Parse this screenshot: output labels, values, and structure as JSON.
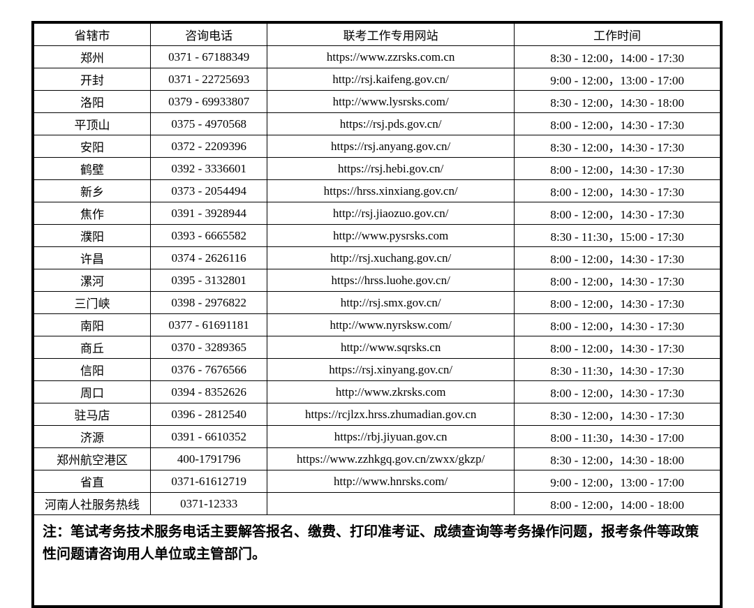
{
  "table": {
    "columns": [
      "省辖市",
      "咨询电话",
      "联考工作专用网站",
      "工作时间"
    ],
    "rows": [
      [
        "郑州",
        "0371 - 67188349",
        "https://www.zzrsks.com.cn",
        "8:30 - 12:00，14:00 - 17:30"
      ],
      [
        "开封",
        "0371 - 22725693",
        "http://rsj.kaifeng.gov.cn/",
        "9:00 - 12:00，13:00 - 17:00"
      ],
      [
        "洛阳",
        "0379 - 69933807",
        "http://www.lysrsks.com/",
        "8:30 - 12:00，14:30 - 18:00"
      ],
      [
        "平顶山",
        "0375 - 4970568",
        "https://rsj.pds.gov.cn/",
        "8:00 - 12:00，14:30 - 17:30"
      ],
      [
        "安阳",
        "0372 - 2209396",
        "https://rsj.anyang.gov.cn/",
        "8:30 - 12:00，14:30 - 17:30"
      ],
      [
        "鹤壁",
        "0392 - 3336601",
        "https://rsj.hebi.gov.cn/",
        "8:00 - 12:00，14:30 - 17:30"
      ],
      [
        "新乡",
        "0373 - 2054494",
        "https://hrss.xinxiang.gov.cn/",
        "8:00 - 12:00，14:30 - 17:30"
      ],
      [
        "焦作",
        "0391 - 3928944",
        "http://rsj.jiaozuo.gov.cn/",
        "8:00 - 12:00，14:30 - 17:30"
      ],
      [
        "濮阳",
        "0393 - 6665582",
        "http://www.pysrsks.com",
        "8:30 - 11:30，15:00 - 17:30"
      ],
      [
        "许昌",
        "0374 - 2626116",
        "http://rsj.xuchang.gov.cn/",
        "8:00 - 12:00，14:30 - 17:30"
      ],
      [
        "漯河",
        "0395 - 3132801",
        "https://hrss.luohe.gov.cn/",
        "8:00 - 12:00，14:30 - 17:30"
      ],
      [
        "三门峡",
        "0398 - 2976822",
        "http://rsj.smx.gov.cn/",
        "8:00 - 12:00，14:30 - 17:30"
      ],
      [
        "南阳",
        "0377 - 61691181",
        "http://www.nyrsksw.com/",
        "8:00 - 12:00，14:30 - 17:30"
      ],
      [
        "商丘",
        "0370 - 3289365",
        "http://www.sqrsks.cn",
        "8:00 - 12:00，14:30 - 17:30"
      ],
      [
        "信阳",
        "0376 - 7676566",
        "https://rsj.xinyang.gov.cn/",
        "8:30 - 11:30，14:30 - 17:30"
      ],
      [
        "周口",
        "0394 - 8352626",
        "http://www.zkrsks.com",
        "8:00 - 12:00，14:30 - 17:30"
      ],
      [
        "驻马店",
        "0396 - 2812540",
        "https://rcjlzx.hrss.zhumadian.gov.cn",
        "8:30 - 12:00，14:30 - 17:30"
      ],
      [
        "济源",
        "0391 - 6610352",
        "https://rbj.jiyuan.gov.cn",
        "8:00 - 11:30，14:30 - 17:00"
      ],
      [
        "郑州航空港区",
        "400-1791796",
        "https://www.zzhkgq.gov.cn/zwxx/gkzp/",
        "8:30 - 12:00，14:30 - 18:00"
      ],
      [
        "省直",
        "0371-61612719",
        "http://www.hnrsks.com/",
        "9:00 - 12:00，13:00 - 17:00"
      ],
      [
        "河南人社服务热线",
        "0371-12333",
        "",
        "8:00 - 12:00，14:00 - 18:00"
      ]
    ],
    "note": "注：笔试考务技术服务电话主要解答报名、缴费、打印准考证、成绩查询等考务操作问题，报考条件等政策性问题请咨询用人单位或主管部门。",
    "border_color": "#000000",
    "background_color": "#ffffff",
    "text_color": "#000000",
    "font_size": 17,
    "note_font_size": 20,
    "col_widths_pct": [
      17,
      17,
      36,
      30
    ]
  }
}
